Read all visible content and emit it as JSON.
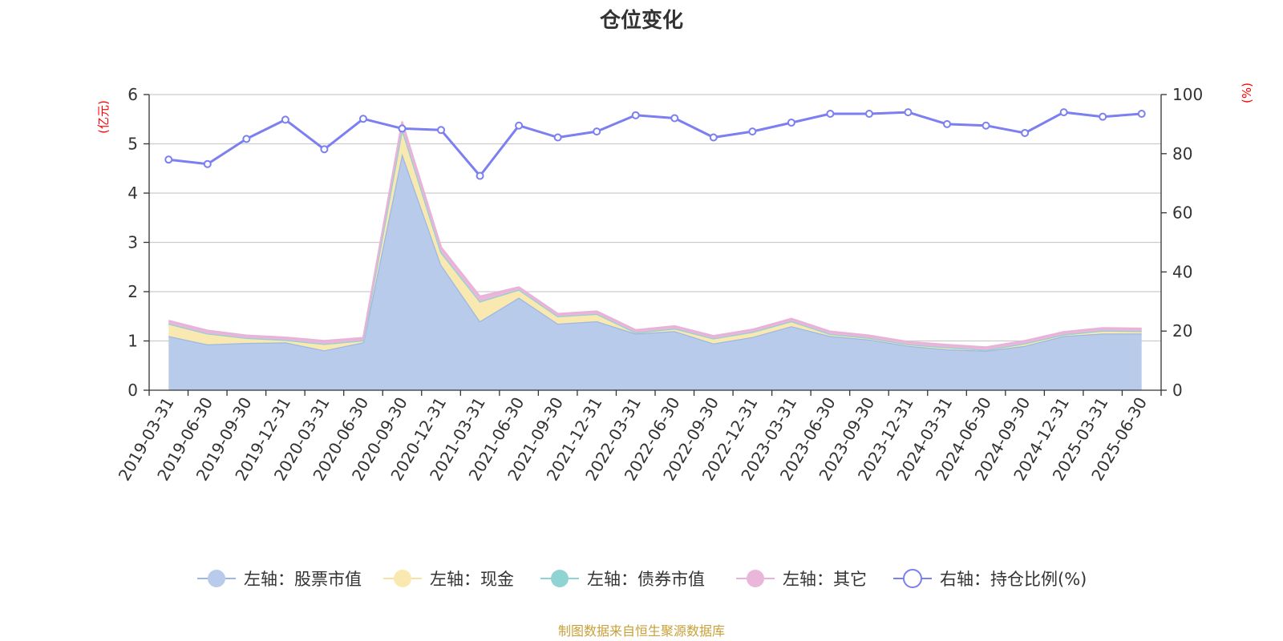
{
  "chart_data": {
    "type": "area",
    "title": "仓位变化",
    "left_axis_unit": "(亿元)",
    "right_axis_unit": "(%)",
    "ylim_left": [
      0,
      6
    ],
    "ylim_right": [
      0,
      100
    ],
    "left_ticks": [
      "0",
      "1",
      "2",
      "3",
      "4",
      "5",
      "6"
    ],
    "right_ticks": [
      "0",
      "20",
      "40",
      "60",
      "80",
      "100"
    ],
    "categories": [
      "2019-03-31",
      "2019-06-30",
      "2019-09-30",
      "2019-12-31",
      "2020-03-31",
      "2020-06-30",
      "2020-09-30",
      "2020-12-31",
      "2021-03-31",
      "2021-06-30",
      "2021-09-30",
      "2021-12-31",
      "2022-03-31",
      "2022-06-30",
      "2022-09-30",
      "2022-12-31",
      "2023-03-31",
      "2023-06-30",
      "2023-09-30",
      "2023-12-31",
      "2024-03-31",
      "2024-06-30",
      "2024-09-30",
      "2024-12-31",
      "2025-03-31",
      "2025-06-30"
    ],
    "series": [
      {
        "name": "左轴：股票市值",
        "axis": "left",
        "kind": "stacked-area",
        "color": "#b8cbeb",
        "line_color": "#9cb8e2",
        "values": [
          1.1,
          0.93,
          0.96,
          0.97,
          0.81,
          0.97,
          4.8,
          2.55,
          1.4,
          1.88,
          1.35,
          1.4,
          1.15,
          1.2,
          0.95,
          1.08,
          1.3,
          1.1,
          1.03,
          0.9,
          0.83,
          0.8,
          0.9,
          1.1,
          1.15,
          1.15
        ]
      },
      {
        "name": "左轴：现金",
        "axis": "left",
        "kind": "stacked-area",
        "color": "#f9e9b0",
        "line_color": "#f7e3a0",
        "values": [
          0.25,
          0.22,
          0.1,
          0.05,
          0.13,
          0.04,
          0.5,
          0.25,
          0.4,
          0.16,
          0.15,
          0.15,
          0.02,
          0.05,
          0.1,
          0.1,
          0.1,
          0.04,
          0.03,
          0.03,
          0.04,
          0.02,
          0.05,
          0.03,
          0.06,
          0.05
        ]
      },
      {
        "name": "左轴：债券市值",
        "axis": "left",
        "kind": "stacked-area",
        "color": "#8fd3d3",
        "line_color": "#8fd3d3",
        "values": [
          0,
          0,
          0,
          0,
          0,
          0,
          0,
          0,
          0,
          0,
          0,
          0,
          0,
          0,
          0,
          0,
          0,
          0,
          0,
          0,
          0,
          0,
          0,
          0,
          0,
          0
        ]
      },
      {
        "name": "左轴：其它",
        "axis": "left",
        "kind": "stacked-area",
        "color": "#eab6da",
        "line_color": "#e8b3d8",
        "values": [
          0.06,
          0.06,
          0.05,
          0.05,
          0.06,
          0.05,
          0.14,
          0.1,
          0.1,
          0.05,
          0.05,
          0.05,
          0.05,
          0.05,
          0.05,
          0.05,
          0.05,
          0.05,
          0.05,
          0.05,
          0.05,
          0.05,
          0.05,
          0.05,
          0.05,
          0.05
        ]
      },
      {
        "name": "右轴：持仓比例(%)",
        "axis": "right",
        "kind": "line",
        "color": "#7b7ff0",
        "values": [
          78.0,
          76.5,
          85.0,
          91.5,
          81.5,
          91.8,
          88.5,
          88.0,
          72.5,
          89.5,
          85.5,
          87.5,
          93.0,
          92.0,
          85.5,
          87.5,
          90.5,
          93.5,
          93.5,
          94.0,
          90.0,
          89.5,
          87.0,
          94.0,
          92.5,
          93.5
        ]
      }
    ],
    "legend_position": "bottom",
    "grid": true
  },
  "source_note": "制图数据来自恒生聚源数据库"
}
